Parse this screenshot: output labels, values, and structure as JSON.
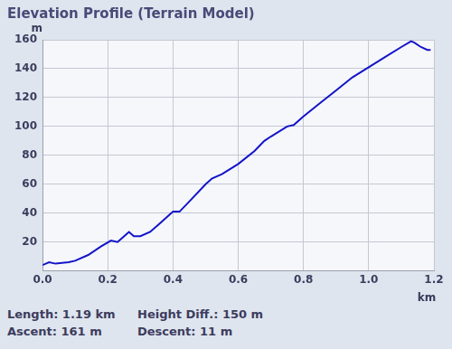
{
  "chart_data": {
    "type": "line",
    "title": "Elevation Profile (Terrain Model)",
    "x_label": "km",
    "y_label": "m",
    "x": [
      0.0,
      0.02,
      0.04,
      0.08,
      0.1,
      0.14,
      0.18,
      0.21,
      0.23,
      0.255,
      0.265,
      0.28,
      0.3,
      0.33,
      0.36,
      0.4,
      0.42,
      0.45,
      0.5,
      0.52,
      0.55,
      0.6,
      0.65,
      0.68,
      0.7,
      0.75,
      0.77,
      0.8,
      0.85,
      0.9,
      0.95,
      1.0,
      1.05,
      1.1,
      1.13,
      1.14,
      1.16,
      1.18,
      1.19
    ],
    "values": [
      4,
      6,
      5,
      6,
      7,
      11,
      17,
      21,
      20,
      25,
      27,
      24,
      24,
      27,
      33,
      41,
      41,
      48,
      60,
      64,
      67,
      74,
      83,
      90,
      93,
      100,
      101,
      107,
      116,
      125,
      134,
      141,
      148,
      155,
      159,
      158,
      155,
      153,
      153
    ],
    "color": "#1414c8",
    "xlim": [
      0,
      1.2
    ],
    "xticks": [
      {
        "value": 0,
        "label": "0.0"
      },
      0.2,
      0.4,
      0.6,
      0.8,
      {
        "value": 1,
        "label": "1.0"
      },
      1.2
    ],
    "ylim": [
      0,
      160
    ],
    "yticks": [
      20,
      40,
      60,
      80,
      100,
      120,
      140,
      160
    ],
    "grid": true,
    "footer": [
      [
        "Length: 1.19 km",
        "Height Diff.: 150 m"
      ],
      [
        "Ascent: 161 m",
        "Descent: 11 m"
      ]
    ]
  }
}
